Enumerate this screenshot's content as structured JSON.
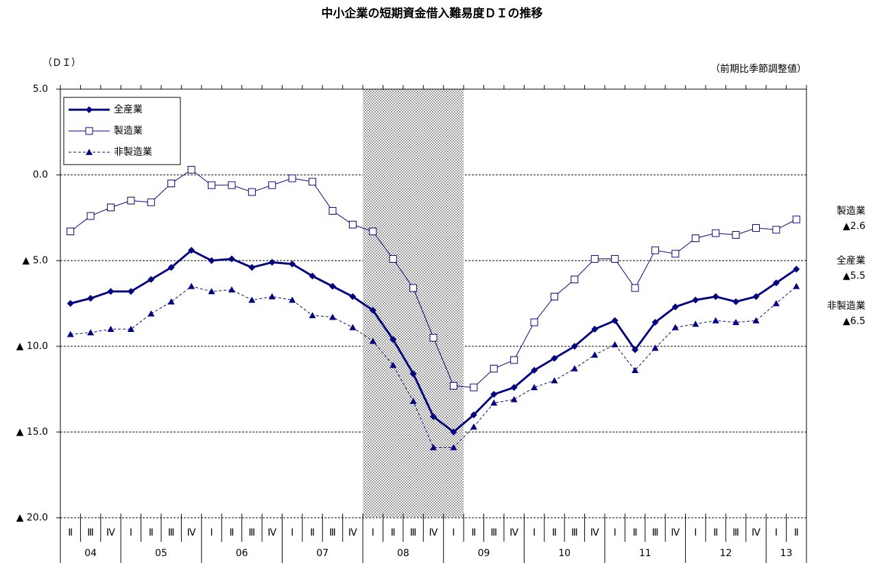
{
  "chart_data": {
    "type": "line",
    "title": "中小企業の短期資金借入難易度ＤＩの推移",
    "y_label": "（ＤＩ）",
    "note": "（前期比季節調整値）",
    "categories": [
      "Ⅱ",
      "Ⅲ",
      "Ⅳ",
      "Ⅰ",
      "Ⅱ",
      "Ⅲ",
      "Ⅳ",
      "Ⅰ",
      "Ⅱ",
      "Ⅲ",
      "Ⅳ",
      "Ⅰ",
      "Ⅱ",
      "Ⅲ",
      "Ⅳ",
      "Ⅰ",
      "Ⅱ",
      "Ⅲ",
      "Ⅳ",
      "Ⅰ",
      "Ⅱ",
      "Ⅲ",
      "Ⅳ",
      "Ⅰ",
      "Ⅱ",
      "Ⅲ",
      "Ⅳ",
      "Ⅰ",
      "Ⅱ",
      "Ⅲ",
      "Ⅳ",
      "Ⅰ",
      "Ⅱ",
      "Ⅲ",
      "Ⅳ",
      "Ⅰ",
      "Ⅱ"
    ],
    "category_groups": [
      "04",
      null,
      null,
      "05",
      null,
      null,
      null,
      "06",
      null,
      null,
      null,
      "07",
      null,
      null,
      null,
      "08",
      null,
      null,
      null,
      "09",
      null,
      null,
      null,
      "10",
      null,
      null,
      null,
      "11",
      null,
      null,
      null,
      "12",
      null,
      null,
      null,
      "13",
      null
    ],
    "shaded_index": [
      15,
      19
    ],
    "ylim": [
      -20,
      5
    ],
    "yticks": [
      {
        "value": 5,
        "label": "5.0"
      },
      {
        "value": 0,
        "label": "0.0"
      },
      {
        "value": -5,
        "label": "▲ 5.0"
      },
      {
        "value": -10,
        "label": "▲ 10.0"
      },
      {
        "value": -15,
        "label": "▲ 15.0"
      },
      {
        "value": -20,
        "label": "▲ 20.0"
      }
    ],
    "grid": true,
    "legend": "upper left",
    "series": [
      {
        "name": "全産業",
        "color": "#000080",
        "line_style": "solid",
        "line_width": 3,
        "marker": "diamond",
        "end_label": "▲5.5",
        "values": [
          -7.5,
          -7.2,
          -6.8,
          -6.8,
          -6.1,
          -5.4,
          -4.4,
          -5.0,
          -4.9,
          -5.4,
          -5.1,
          -5.2,
          -5.9,
          -6.5,
          -7.1,
          -7.9,
          -9.6,
          -11.6,
          -14.1,
          -15.0,
          -14.0,
          -12.8,
          -12.4,
          -11.4,
          -10.7,
          -10.0,
          -9.0,
          -8.5,
          -10.2,
          -8.6,
          -7.7,
          -7.3,
          -7.1,
          -7.4,
          -7.1,
          -6.3,
          -5.5
        ]
      },
      {
        "name": "製造業",
        "color": "#000080",
        "line_style": "solid",
        "line_width": 1,
        "marker": "square-open",
        "end_label": "▲2.6",
        "values": [
          -3.3,
          -2.4,
          -1.9,
          -1.5,
          -1.6,
          -0.5,
          0.3,
          -0.6,
          -0.6,
          -1.0,
          -0.6,
          -0.2,
          -0.4,
          -2.1,
          -2.9,
          -3.3,
          -4.9,
          -6.6,
          -9.5,
          -12.3,
          -12.4,
          -11.3,
          -10.8,
          -8.6,
          -7.1,
          -6.1,
          -4.9,
          -4.9,
          -6.6,
          -4.4,
          -4.6,
          -3.7,
          -3.4,
          -3.5,
          -3.1,
          -3.2,
          -2.6
        ]
      },
      {
        "name": "非製造業",
        "color": "#000080",
        "line_style": "dashed",
        "line_width": 1,
        "marker": "triangle",
        "end_label": "▲6.5",
        "values": [
          -9.3,
          -9.2,
          -9.0,
          -9.0,
          -8.1,
          -7.4,
          -6.5,
          -6.8,
          -6.7,
          -7.3,
          -7.1,
          -7.3,
          -8.2,
          -8.3,
          -8.9,
          -9.7,
          -11.1,
          -13.2,
          -15.9,
          -15.9,
          -14.7,
          -13.3,
          -13.1,
          -12.4,
          -12.0,
          -11.3,
          -10.5,
          -9.9,
          -11.4,
          -10.1,
          -8.9,
          -8.7,
          -8.5,
          -8.6,
          -8.5,
          -7.5,
          -6.5
        ]
      }
    ]
  }
}
